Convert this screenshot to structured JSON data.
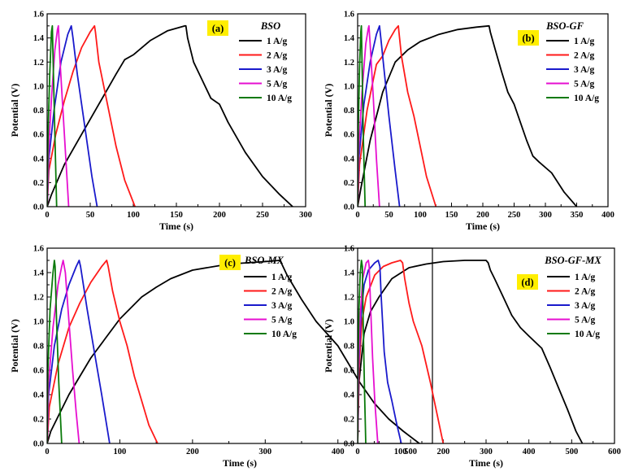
{
  "colors": {
    "series_1": "#000000",
    "series_2": "#ff1a1a",
    "series_3": "#1a1acc",
    "series_4": "#e60fd0",
    "series_5": "#0a7a0a",
    "tag_background": "#ffee00"
  },
  "chart_data": [
    {
      "type": "line",
      "panel_tag": "(a)",
      "title": "BSO",
      "xlabel": "Time (s)",
      "ylabel": "Potential (V)",
      "xlim": [
        0,
        300
      ],
      "ylim": [
        0,
        1.6
      ],
      "xticks": [
        "0",
        "50",
        "100",
        "150",
        "200",
        "250",
        "300"
      ],
      "yticks": [
        "0.0",
        "0.2",
        "0.4",
        "0.6",
        "0.8",
        "1.0",
        "1.2",
        "1.4",
        "1.6"
      ],
      "legend_position": "top-right",
      "series": [
        {
          "name": "1 A/g",
          "x": [
            0,
            5,
            20,
            40,
            60,
            80,
            90,
            100,
            120,
            140,
            160,
            161,
            163,
            170,
            180,
            190,
            200,
            210,
            230,
            250,
            270,
            285
          ],
          "y": [
            0,
            0.1,
            0.35,
            0.6,
            0.85,
            1.1,
            1.22,
            1.26,
            1.38,
            1.46,
            1.5,
            1.5,
            1.4,
            1.2,
            1.05,
            0.9,
            0.85,
            0.7,
            0.45,
            0.25,
            0.1,
            0
          ]
        },
        {
          "name": "2 A/g",
          "x": [
            0,
            2,
            10,
            20,
            30,
            40,
            50,
            55,
            56,
            60,
            70,
            80,
            90,
            102
          ],
          "y": [
            0,
            0.3,
            0.6,
            0.88,
            1.12,
            1.32,
            1.45,
            1.5,
            1.45,
            1.2,
            0.85,
            0.5,
            0.22,
            0
          ]
        },
        {
          "name": "3 A/g",
          "x": [
            0,
            2,
            8,
            16,
            24,
            28,
            30,
            35,
            45,
            52,
            58
          ],
          "y": [
            0,
            0.4,
            0.8,
            1.2,
            1.43,
            1.5,
            1.4,
            1.1,
            0.6,
            0.25,
            0
          ]
        },
        {
          "name": "5 A/g",
          "x": [
            0,
            2,
            5,
            9,
            12,
            13,
            15,
            20,
            25
          ],
          "y": [
            0,
            0.5,
            0.9,
            1.3,
            1.47,
            1.5,
            1.2,
            0.6,
            0
          ]
        },
        {
          "name": "10 A/g",
          "x": [
            0,
            1,
            3,
            5,
            6,
            7,
            9,
            11
          ],
          "y": [
            0,
            0.6,
            1.1,
            1.45,
            1.5,
            1.2,
            0.6,
            0
          ]
        }
      ]
    },
    {
      "type": "line",
      "panel_tag": "(b)",
      "title": "BSO-GF",
      "xlabel": "Time (s)",
      "ylabel": "Potential (V)",
      "xlim": [
        0,
        400
      ],
      "ylim": [
        0,
        1.6
      ],
      "xticks": [
        "0",
        "50",
        "100",
        "150",
        "200",
        "250",
        "300",
        "350",
        "400"
      ],
      "yticks": [
        "0.0",
        "0.2",
        "0.4",
        "0.6",
        "0.8",
        "1.0",
        "1.2",
        "1.4",
        "1.6"
      ],
      "legend_position": "top-right",
      "series": [
        {
          "name": "1 A/g",
          "x": [
            0,
            5,
            20,
            40,
            60,
            70,
            80,
            100,
            130,
            160,
            190,
            210,
            212,
            220,
            230,
            240,
            250,
            260,
            270,
            280,
            290,
            310,
            330,
            350
          ],
          "y": [
            0,
            0.15,
            0.55,
            0.95,
            1.2,
            1.25,
            1.3,
            1.37,
            1.43,
            1.47,
            1.49,
            1.5,
            1.45,
            1.3,
            1.12,
            0.95,
            0.85,
            0.7,
            0.55,
            0.42,
            0.37,
            0.28,
            0.12,
            0
          ]
        },
        {
          "name": "2 A/g",
          "x": [
            0,
            3,
            15,
            30,
            40,
            50,
            60,
            65,
            66,
            70,
            80,
            90,
            100,
            110,
            125
          ],
          "y": [
            0,
            0.35,
            0.8,
            1.18,
            1.25,
            1.38,
            1.47,
            1.5,
            1.45,
            1.25,
            0.95,
            0.75,
            0.5,
            0.25,
            0
          ]
        },
        {
          "name": "3 A/g",
          "x": [
            0,
            2,
            10,
            20,
            30,
            35,
            37,
            42,
            50,
            60,
            67
          ],
          "y": [
            0,
            0.4,
            0.85,
            1.2,
            1.43,
            1.5,
            1.4,
            1.15,
            0.75,
            0.3,
            0
          ]
        },
        {
          "name": "5 A/g",
          "x": [
            0,
            2,
            7,
            13,
            17,
            18,
            20,
            25,
            30,
            35
          ],
          "y": [
            0,
            0.5,
            0.95,
            1.35,
            1.48,
            1.5,
            1.35,
            0.9,
            0.4,
            0
          ]
        },
        {
          "name": "10 A/g",
          "x": [
            0,
            1,
            3,
            5,
            6,
            7,
            9,
            12
          ],
          "y": [
            0,
            0.65,
            1.15,
            1.45,
            1.5,
            1.2,
            0.6,
            0
          ]
        }
      ]
    },
    {
      "type": "line",
      "panel_tag": "(c)",
      "title": "BSO-MX",
      "xlabel": "Time (s)",
      "ylabel": "Potential (V)",
      "xlim": [
        0,
        530
      ],
      "ylim": [
        0,
        1.6
      ],
      "xticks": [
        "0",
        "100",
        "200",
        "300",
        "400",
        "500"
      ],
      "yticks": [
        "0.0",
        "0.2",
        "0.4",
        "0.6",
        "0.8",
        "1.0",
        "1.2",
        "1.4",
        "1.6"
      ],
      "legend_position": "top-right",
      "series": [
        {
          "name": "1 A/g",
          "x": [
            0,
            5,
            30,
            60,
            100,
            130,
            150,
            170,
            200,
            250,
            300,
            320,
            322,
            330,
            350,
            370,
            400,
            430,
            450,
            470,
            490,
            512
          ],
          "y": [
            0,
            0.1,
            0.4,
            0.7,
            1.02,
            1.2,
            1.28,
            1.35,
            1.42,
            1.47,
            1.49,
            1.5,
            1.48,
            1.38,
            1.18,
            1.0,
            0.8,
            0.5,
            0.33,
            0.2,
            0.1,
            0
          ]
        },
        {
          "name": "2 A/g",
          "x": [
            0,
            3,
            15,
            30,
            45,
            60,
            75,
            82,
            84,
            90,
            100,
            110,
            120,
            130,
            140,
            152
          ],
          "y": [
            0,
            0.3,
            0.65,
            0.95,
            1.15,
            1.32,
            1.45,
            1.5,
            1.45,
            1.25,
            1.0,
            0.8,
            0.55,
            0.35,
            0.15,
            0
          ]
        },
        {
          "name": "3 A/g",
          "x": [
            0,
            2,
            10,
            20,
            30,
            40,
            44,
            46,
            55,
            65,
            75,
            86
          ],
          "y": [
            0,
            0.4,
            0.8,
            1.1,
            1.3,
            1.45,
            1.5,
            1.45,
            1.1,
            0.75,
            0.4,
            0
          ]
        },
        {
          "name": "5 A/g",
          "x": [
            0,
            2,
            8,
            15,
            20,
            22,
            25,
            30,
            35,
            40,
            44
          ],
          "y": [
            0,
            0.5,
            0.95,
            1.3,
            1.45,
            1.5,
            1.4,
            1.0,
            0.6,
            0.25,
            0
          ]
        },
        {
          "name": "10 A/g",
          "x": [
            0,
            1,
            4,
            8,
            10,
            11,
            13,
            16,
            20
          ],
          "y": [
            0,
            0.6,
            1.1,
            1.4,
            1.5,
            1.45,
            1.0,
            0.5,
            0
          ]
        }
      ]
    },
    {
      "type": "line",
      "panel_tag": "(d)",
      "title": "BSO-GF-MX",
      "xlabel": "Time (s)",
      "ylabel": "Potential (V)",
      "xlim": [
        0,
        600
      ],
      "ylim": [
        0,
        1.6
      ],
      "xticks": [
        "0",
        "100",
        "200",
        "300",
        "400",
        "500",
        "600"
      ],
      "yticks": [
        "0.0",
        "0.2",
        "0.4",
        "0.6",
        "0.8",
        "1.0",
        "1.2",
        "1.4",
        "1.6"
      ],
      "legend_position": "top-right",
      "series": [
        {
          "name": "1 A/g",
          "x": [
            0,
            3,
            15,
            30,
            50,
            80,
            120,
            160,
            200,
            250,
            300,
            305,
            310,
            320,
            340,
            360,
            380,
            400,
            430,
            450,
            470,
            490,
            510,
            525
          ],
          "y": [
            0,
            0.5,
            0.9,
            1.08,
            1.2,
            1.35,
            1.44,
            1.47,
            1.49,
            1.5,
            1.5,
            1.48,
            1.42,
            1.35,
            1.2,
            1.05,
            0.95,
            0.88,
            0.78,
            0.62,
            0.45,
            0.28,
            0.1,
            0
          ]
        },
        {
          "name": "2 A/g",
          "x": [
            0,
            3,
            10,
            20,
            40,
            60,
            80,
            100,
            105,
            110,
            120,
            130,
            150,
            170,
            185,
            200
          ],
          "y": [
            0,
            0.6,
            1.0,
            1.2,
            1.38,
            1.45,
            1.48,
            1.5,
            1.48,
            1.35,
            1.15,
            1.0,
            0.8,
            0.5,
            0.25,
            0
          ]
        },
        {
          "name": "3 A/g",
          "x": [
            0,
            2,
            8,
            15,
            25,
            40,
            48,
            52,
            55,
            62,
            70,
            80,
            90,
            102
          ],
          "y": [
            0,
            0.6,
            1.05,
            1.3,
            1.42,
            1.48,
            1.5,
            1.45,
            1.2,
            0.75,
            0.5,
            0.35,
            0.18,
            0
          ]
        },
        {
          "name": "5 A/g",
          "x": [
            0,
            2,
            6,
            12,
            20,
            25,
            27,
            30,
            35,
            40,
            47
          ],
          "y": [
            0,
            0.6,
            1.05,
            1.35,
            1.48,
            1.5,
            1.45,
            1.15,
            0.7,
            0.35,
            0
          ]
        },
        {
          "name": "10 A/g",
          "x": [
            0,
            1,
            3,
            6,
            9,
            11,
            13,
            16,
            19
          ],
          "y": [
            0,
            0.65,
            1.1,
            1.4,
            1.5,
            1.45,
            1.0,
            0.45,
            0
          ]
        }
      ]
    }
  ]
}
